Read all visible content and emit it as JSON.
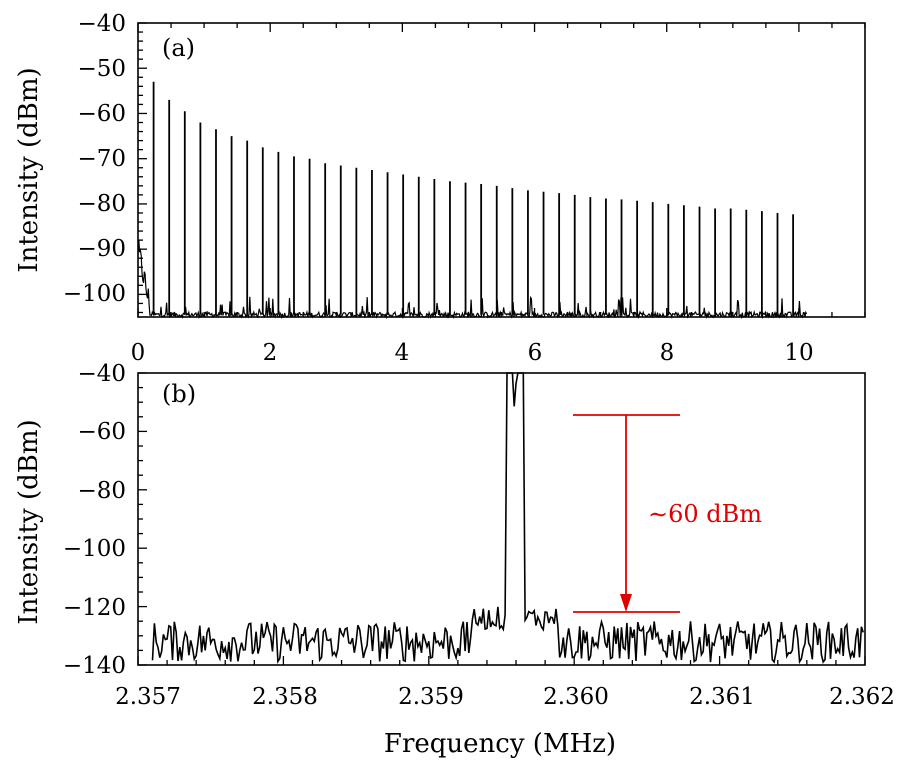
{
  "chart_data": [
    {
      "panel": "(a)",
      "type": "line",
      "title": "",
      "xlabel": "",
      "ylabel": "Intensity (dBm)",
      "xlim": [
        0,
        11
      ],
      "ylim": [
        -105,
        -40
      ],
      "xticks": [
        "0",
        "2",
        "4",
        "6",
        "8",
        "10"
      ],
      "yticks": [
        "−40",
        "−50",
        "−60",
        "−70",
        "−80",
        "−90",
        "−100"
      ],
      "noise_floor_dbm": -104.5,
      "series": [
        {
          "style": "harmonic comb (peak frequency, MHz vs. peak intensity, dBm)",
          "x": [
            0.236,
            0.472,
            0.708,
            0.944,
            1.18,
            1.416,
            1.652,
            1.888,
            2.124,
            2.36,
            2.596,
            2.832,
            3.068,
            3.304,
            3.54,
            3.776,
            4.012,
            4.248,
            4.484,
            4.72,
            4.956,
            5.192,
            5.428,
            5.664,
            5.9,
            6.136,
            6.372,
            6.608,
            6.844,
            7.08,
            7.316,
            7.552,
            7.788,
            8.024,
            8.26,
            8.496,
            8.732,
            8.968,
            9.204,
            9.44,
            9.676,
            9.912
          ],
          "y": [
            -53,
            -57,
            -59.5,
            -62,
            -63.5,
            -65,
            -66,
            -67.5,
            -68.5,
            -69.5,
            -70,
            -71,
            -71.5,
            -72,
            -72.5,
            -73,
            -73.5,
            -74,
            -74.5,
            -75,
            -75.3,
            -75.6,
            -76,
            -76.5,
            -77,
            -77.3,
            -77.6,
            -78,
            -78.5,
            -78.8,
            -79,
            -79.3,
            -79.6,
            -80,
            -80.3,
            -80.6,
            -81,
            -81,
            -81.3,
            -81.6,
            -82,
            -82.3
          ]
        }
      ]
    },
    {
      "panel": "(b)",
      "type": "line",
      "title": "",
      "xlabel": "Frequency (MHz)",
      "ylabel": "Intensity (dBm)",
      "xlim": [
        2.357,
        2.362
      ],
      "ylim": [
        -140,
        -40
      ],
      "xticks": [
        "2.357",
        "2.358",
        "2.359",
        "2.360",
        "2.361",
        "2.362"
      ],
      "yticks": [
        "−40",
        "−60",
        "−80",
        "−100",
        "−120",
        "−140"
      ],
      "noise_floor_dbm": -132,
      "series": [
        {
          "style": "single peak above noise floor",
          "x": [
            2.35959
          ],
          "y": [
            -54
          ]
        }
      ],
      "annotation": {
        "text": "∼60 dBm",
        "top_dbm": -54,
        "bottom_dbm": -122,
        "x_from": 2.36,
        "x_to": 2.3607,
        "arrow_x": 2.36035,
        "color": "#e00000"
      }
    }
  ]
}
